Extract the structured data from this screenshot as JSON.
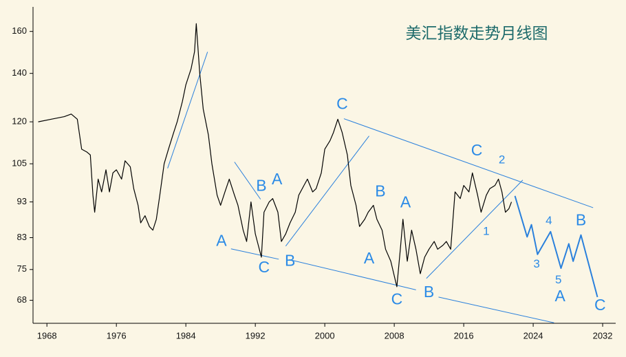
{
  "chart_data": {
    "type": "line",
    "title": "美汇指数走势月线图",
    "log_scale_y": true,
    "xlim": [
      1966.4,
      2033.5
    ],
    "ylim": [
      63.2,
      173
    ],
    "xticks": [
      1968,
      1976,
      1984,
      1992,
      2000,
      2008,
      2016,
      2024,
      2032
    ],
    "yticks": [
      68,
      75,
      83,
      93,
      105,
      120,
      140,
      160
    ],
    "series": [
      {
        "color": "#000000",
        "x": [
          1967.0,
          1968.5,
          1970.0,
          1970.8,
          1971.5,
          1972.0,
          1972.6,
          1973.0,
          1973.3,
          1973.5,
          1973.9,
          1974.3,
          1974.8,
          1975.2,
          1975.6,
          1976.0,
          1976.6,
          1977.0,
          1977.6,
          1978.0,
          1978.5,
          1978.8,
          1979.3,
          1979.8,
          1980.2,
          1980.6,
          1981.0,
          1981.5,
          1982.0,
          1982.6,
          1983.0,
          1983.6,
          1984.0,
          1984.6,
          1985.0,
          1985.2,
          1985.6,
          1986.0,
          1986.6,
          1987.0,
          1987.6,
          1988.0,
          1988.5,
          1989.0,
          1989.6,
          1990.0,
          1990.6,
          1991.0,
          1991.5,
          1992.0,
          1992.7,
          1993.0,
          1993.6,
          1994.0,
          1994.6,
          1995.0,
          1995.5,
          1996.0,
          1996.6,
          1997.0,
          1997.6,
          1998.0,
          1998.6,
          1999.0,
          1999.6,
          2000.0,
          2000.6,
          2001.0,
          2001.5,
          2002.0,
          2002.6,
          2003.0,
          2003.6,
          2004.0,
          2004.6,
          2005.0,
          2005.6,
          2006.0,
          2006.6,
          2007.0,
          2007.6,
          2008.3,
          2008.7,
          2009.0,
          2009.5,
          2010.0,
          2010.5,
          2011.0,
          2011.5,
          2012.0,
          2012.6,
          2013.0,
          2013.6,
          2014.0,
          2014.5,
          2015.0,
          2015.6,
          2016.0,
          2016.6,
          2017.0,
          2017.6,
          2018.0,
          2018.6,
          2019.0,
          2019.6,
          2020.0,
          2020.4,
          2020.8,
          2021.2,
          2021.5
        ],
        "values": [
          120,
          121,
          122,
          123,
          121,
          110,
          109,
          108,
          95,
          90,
          100,
          96,
          103,
          96,
          102,
          103,
          100,
          106,
          104,
          97,
          92,
          87,
          89,
          86,
          85,
          88,
          95,
          105,
          110,
          116,
          120,
          128,
          135,
          142,
          150,
          164,
          140,
          125,
          115,
          105,
          95,
          92,
          96,
          100,
          95,
          92,
          85,
          82,
          93,
          84,
          78,
          90,
          93,
          94,
          90,
          82,
          84,
          87,
          90,
          95,
          98,
          100,
          96,
          97,
          102,
          110,
          113,
          116,
          121,
          116,
          108,
          98,
          92,
          86,
          88,
          90,
          92,
          88,
          85,
          80,
          77,
          71,
          80,
          88,
          77,
          85,
          80,
          74,
          78,
          80,
          82,
          80,
          81,
          82,
          80,
          96,
          94,
          98,
          96,
          102,
          95,
          90,
          95,
          97,
          98,
          100,
          96,
          90,
          91,
          93
        ]
      },
      {
        "color": "#2a80dc",
        "x": [
          2021.9,
          2023.3,
          2023.8,
          2024.5,
          2026.0,
          2027.2,
          2028.1,
          2028.6,
          2029.5,
          2031.4
        ],
        "values": [
          94.8,
          83.2,
          86.5,
          78.7,
          84.6,
          75.3,
          81.4,
          77.0,
          83.7,
          68.7
        ]
      }
    ],
    "line_color": "#2a80dc",
    "lines": [
      {
        "x": [
          1981.9,
          1986.5
        ],
        "y": [
          103.5,
          149.9
        ]
      },
      {
        "x": [
          1989.6,
          1992.6
        ],
        "y": [
          105.6,
          93.8
        ]
      },
      {
        "x": [
          1989.2,
          1994.7
        ],
        "y": [
          80.1,
          77.5
        ]
      },
      {
        "x": [
          1995.5,
          2005.1
        ],
        "y": [
          80.8,
          114.7
        ]
      },
      {
        "x": [
          2002.2,
          2030.9
        ],
        "y": [
          121.2,
          91.3
        ]
      },
      {
        "x": [
          1995.9,
          2010.5
        ],
        "y": [
          77.4,
          70.3
        ]
      },
      {
        "x": [
          2013.1,
          2026.4
        ],
        "y": [
          68.7,
          63.3
        ]
      },
      {
        "x": [
          2011.7,
          2022.8
        ],
        "y": [
          72.9,
          99.7
        ]
      }
    ],
    "annotation_color": "#2a8ae6",
    "annotations": [
      {
        "text": "A",
        "x": 1988.1,
        "y": 81.9
      },
      {
        "text": "B",
        "x": 1992.7,
        "y": 97.6
      },
      {
        "text": "A",
        "x": 1994.5,
        "y": 99.7
      },
      {
        "text": "C",
        "x": 1993.0,
        "y": 75.3
      },
      {
        "text": "B",
        "x": 1996.0,
        "y": 76.9
      },
      {
        "text": "C",
        "x": 2002.0,
        "y": 126.6
      },
      {
        "text": "B",
        "x": 2006.4,
        "y": 95.9
      },
      {
        "text": "A",
        "x": 2005.1,
        "y": 77.5
      },
      {
        "text": "A",
        "x": 2009.3,
        "y": 92.6
      },
      {
        "text": "C",
        "x": 2008.3,
        "y": 68.0
      },
      {
        "text": "B",
        "x": 2012.0,
        "y": 69.6
      },
      {
        "text": "C",
        "x": 2017.5,
        "y": 109.3
      },
      {
        "text": "2",
        "x": 2020.4,
        "y": 106.2
      },
      {
        "text": "1",
        "x": 2018.6,
        "y": 84.6
      },
      {
        "text": "3",
        "x": 2024.4,
        "y": 76.2
      },
      {
        "text": "4",
        "x": 2025.8,
        "y": 87.5
      },
      {
        "text": "5",
        "x": 2026.9,
        "y": 72.5
      },
      {
        "text": "A",
        "x": 2027.1,
        "y": 68.7
      },
      {
        "text": "B",
        "x": 2029.5,
        "y": 87.5
      },
      {
        "text": "C",
        "x": 2031.7,
        "y": 66.8
      }
    ]
  }
}
